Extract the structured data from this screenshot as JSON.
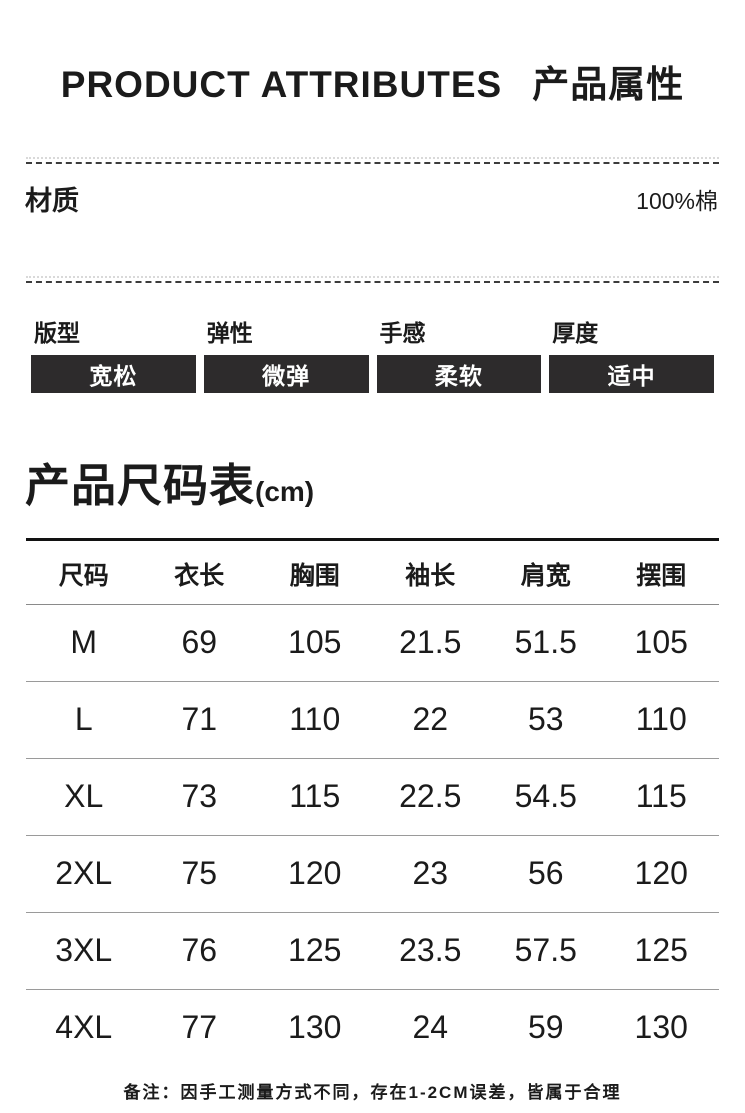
{
  "header": {
    "title_en": "PRODUCT ATTRIBUTES",
    "title_zh": "产品属性"
  },
  "material": {
    "label": "材质",
    "value": "100%棉"
  },
  "attributes": [
    {
      "label": "版型",
      "value": "宽松"
    },
    {
      "label": "弹性",
      "value": "微弹"
    },
    {
      "label": "手感",
      "value": "柔软"
    },
    {
      "label": "厚度",
      "value": "适中"
    }
  ],
  "size_chart": {
    "title": "产品尺码表",
    "unit": "(cm)",
    "columns": [
      "尺码",
      "衣长",
      "胸围",
      "袖长",
      "肩宽",
      "摆围"
    ],
    "rows": [
      [
        "M",
        "69",
        "105",
        "21.5",
        "51.5",
        "105"
      ],
      [
        "L",
        "71",
        "110",
        "22",
        "53",
        "110"
      ],
      [
        "XL",
        "73",
        "115",
        "22.5",
        "54.5",
        "115"
      ],
      [
        "2XL",
        "75",
        "120",
        "23",
        "56",
        "120"
      ],
      [
        "3XL",
        "76",
        "125",
        "23.5",
        "57.5",
        "125"
      ],
      [
        "4XL",
        "77",
        "130",
        "24",
        "59",
        "130"
      ]
    ]
  },
  "note": {
    "text": "备注：因手工测量方式不同，存在1-2CM误差，皆属于合理"
  },
  "colors": {
    "text": "#1b1b1b",
    "badge_bg": "#2d2b2c",
    "badge_text": "#ffffff",
    "divider_dark": "#3c3c3c",
    "divider_light": "#d9d9d9",
    "table_top_border": "#121212",
    "row_separator": "#9a9a9a"
  }
}
